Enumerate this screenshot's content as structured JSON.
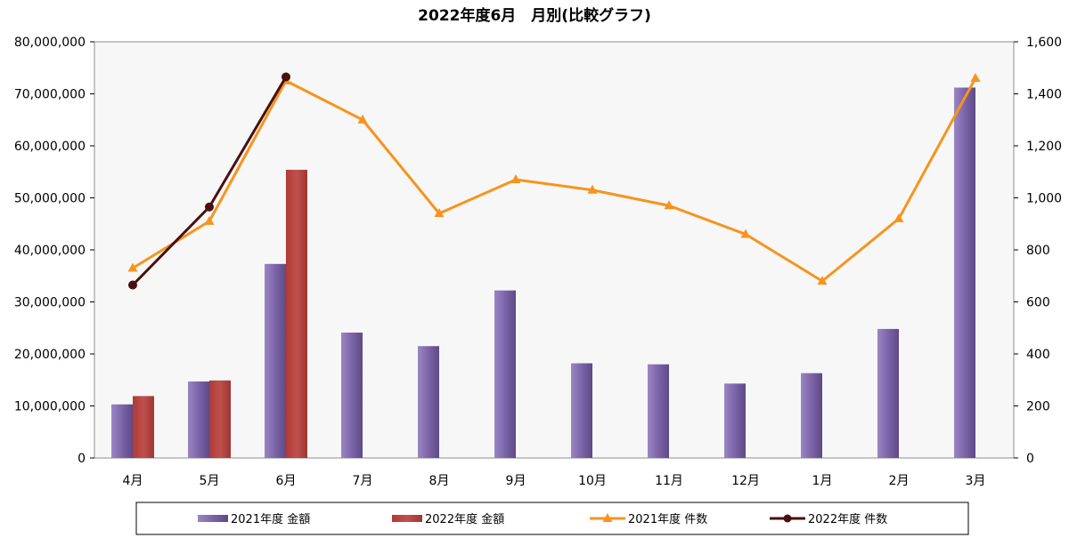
{
  "chart_data": {
    "type": "bar",
    "title": "2022年度6月　月別(比較グラフ)",
    "categories": [
      "4月",
      "5月",
      "6月",
      "7月",
      "8月",
      "9月",
      "10月",
      "11月",
      "12月",
      "1月",
      "2月",
      "3月"
    ],
    "y_left": {
      "min": 0,
      "max": 80000000,
      "step": 10000000,
      "ticks": [
        "0",
        "10,000,000",
        "20,000,000",
        "30,000,000",
        "40,000,000",
        "50,000,000",
        "60,000,000",
        "70,000,000",
        "80,000,000"
      ]
    },
    "y_right": {
      "min": 0,
      "max": 1600,
      "step": 200,
      "ticks": [
        "0",
        "200",
        "400",
        "600",
        "800",
        "1,000",
        "1,200",
        "1,400",
        "1,600"
      ]
    },
    "series": [
      {
        "name": "2021年度 金額",
        "kind": "bar",
        "axis": "left",
        "color": "#7b64a8",
        "values": [
          10300000,
          14700000,
          37300000,
          24100000,
          21500000,
          32200000,
          18200000,
          18000000,
          14300000,
          16300000,
          24800000,
          71200000
        ]
      },
      {
        "name": "2022年度 金額",
        "kind": "bar",
        "axis": "left",
        "color": "#c0504d",
        "values": [
          11900000,
          14900000,
          55400000,
          null,
          null,
          null,
          null,
          null,
          null,
          null,
          null,
          null
        ]
      },
      {
        "name": "2021年度 件数",
        "kind": "line",
        "marker": "triangle",
        "axis": "right",
        "color": "#f7941d",
        "values": [
          730,
          910,
          1450,
          1300,
          940,
          1070,
          1030,
          970,
          860,
          680,
          920,
          1460
        ]
      },
      {
        "name": "2022年度 件数",
        "kind": "line",
        "marker": "circle",
        "axis": "right",
        "color": "#4a0f0f",
        "values": [
          665,
          965,
          1465,
          null,
          null,
          null,
          null,
          null,
          null,
          null,
          null,
          null
        ]
      }
    ],
    "grid": false,
    "legend_position": "bottom"
  }
}
